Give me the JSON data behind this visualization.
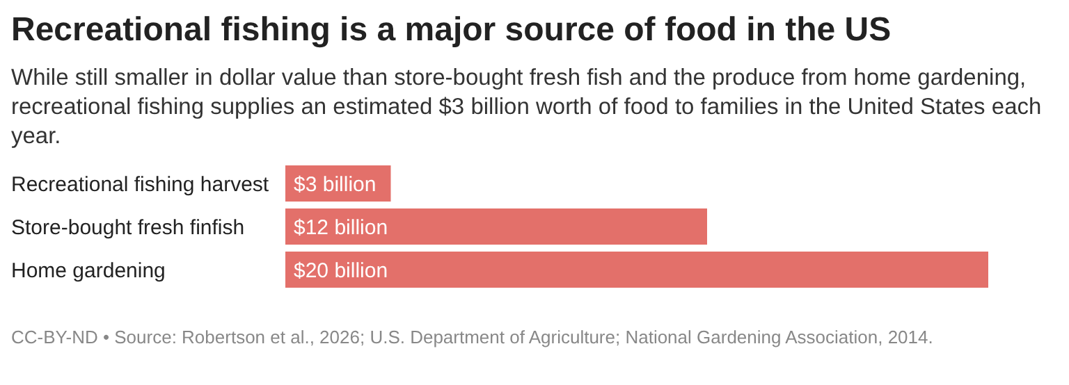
{
  "chart_data": {
    "type": "bar",
    "orientation": "horizontal",
    "title": "Recreational fishing is a major source of food in the US",
    "subtitle": "While still smaller in dollar value than store-bought fresh fish and the produce from home gardening, recreational fishing supplies an estimated $3 billion worth of food to families in the United States each year.",
    "categories": [
      "Recreational fishing harvest",
      "Store-bought fresh finfish",
      "Home gardening"
    ],
    "values": [
      3,
      12,
      20
    ],
    "value_labels": [
      "$3 billion",
      "$12 billion",
      "$20 billion"
    ],
    "color": "#e3706a",
    "annotations": [
      "CC-BY-ND • Source: Robertson et al., 2026; U.S. Department of Agriculture; National Gardening Association, 2014."
    ]
  }
}
